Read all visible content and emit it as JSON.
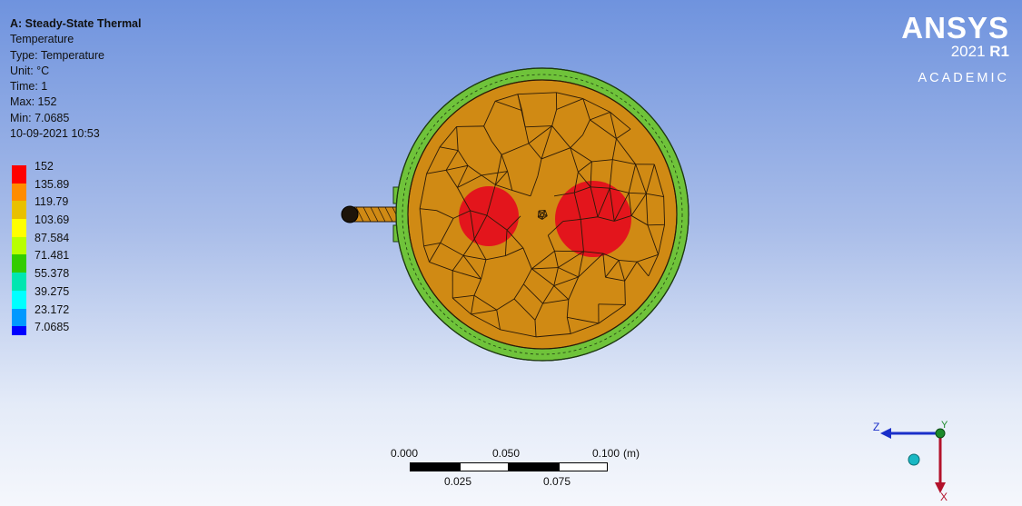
{
  "info": {
    "title": "A: Steady-State Thermal",
    "result": "Temperature",
    "type": "Type: Temperature",
    "unit": "Unit: °C",
    "time": "Time: 1",
    "max": "Max: 152",
    "min": "Min: 7.0685",
    "timestamp": "10-09-2021 10:53"
  },
  "legend": [
    {
      "label": "152",
      "color": "#ff0000"
    },
    {
      "label": "135.89",
      "color": "#ff8c00"
    },
    {
      "label": "119.79",
      "color": "#e8c000"
    },
    {
      "label": "103.69",
      "color": "#ffff00"
    },
    {
      "label": "87.584",
      "color": "#b8ff00"
    },
    {
      "label": "71.481",
      "color": "#33cc00"
    },
    {
      "label": "55.378",
      "color": "#00e6b0"
    },
    {
      "label": "39.275",
      "color": "#00ffff"
    },
    {
      "label": "23.172",
      "color": "#0099ff"
    },
    {
      "label": "7.0685",
      "color": "#0000ff"
    }
  ],
  "logo": {
    "brand": "ANSYS",
    "version": "2021",
    "release": "R1",
    "edition": "ACADEMIC"
  },
  "scale": {
    "ticks_top": [
      "0.000",
      "0.050",
      "0.100"
    ],
    "unit": "(m)",
    "ticks_bottom": [
      "0.025",
      "0.075"
    ]
  },
  "triad": {
    "z_label": "Z",
    "y_label": "Y",
    "x_label": "X"
  },
  "colors": {
    "body_fill": "#d08a14",
    "shell_fill": "#6fc33a",
    "hot_spot": "#e3151c",
    "mesh_line": "#2a1a08"
  }
}
